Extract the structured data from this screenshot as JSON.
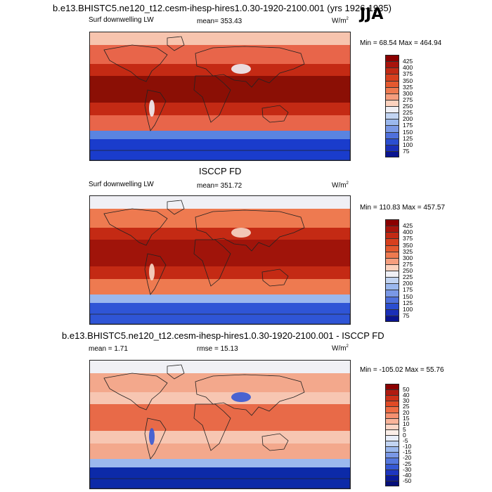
{
  "header": {
    "title": "b.e13.BHISTC5.ne120_t12.cesm-ihesp-hires1.0.30-1920-2100.001 (yrs 1926-1935)",
    "season": "JJA"
  },
  "panels": [
    {
      "id": "model",
      "title": "",
      "left_label": "Surf downwelling LW",
      "center_label": "mean= 353.43",
      "units": "W/m",
      "units_sup": "2",
      "minmax": "Min =  68.54 Max = 464.94",
      "colorbar": {
        "levels": [
          "425",
          "400",
          "375",
          "350",
          "325",
          "300",
          "275",
          "250",
          "225",
          "200",
          "175",
          "150",
          "125",
          "100",
          "75"
        ],
        "colors": [
          "#8b0000",
          "#a8140c",
          "#c22a14",
          "#d7401e",
          "#e4592f",
          "#ee7a50",
          "#f59e7e",
          "#fcd2be",
          "#f0f0f5",
          "#c2d4f2",
          "#9bb8ee",
          "#7a98e6",
          "#4f70dc",
          "#2b4ed0",
          "#1a2fb8",
          "#0a1490"
        ]
      },
      "map_colors": {
        "polar": "#1a3ccc",
        "mid_south": "#5a84e0",
        "mid": "#e8654a",
        "tropics": "#c42a14",
        "warm_pool": "#8b0f05",
        "land_cold": "#f0f0f5",
        "arctic": "#f7c4ae"
      }
    },
    {
      "id": "obs",
      "title": "ISCCP FD",
      "left_label": "Surf downwelling LW",
      "center_label": "mean= 351.72",
      "units": "W/m",
      "units_sup": "2",
      "minmax": "Min = 110.83 Max = 457.57",
      "colorbar": {
        "levels": [
          "425",
          "400",
          "375",
          "350",
          "325",
          "300",
          "275",
          "250",
          "225",
          "200",
          "175",
          "150",
          "125",
          "100",
          "75"
        ],
        "colors": [
          "#8b0000",
          "#a8140c",
          "#c22a14",
          "#d7401e",
          "#e4592f",
          "#ee7a50",
          "#f59e7e",
          "#fcd2be",
          "#f0f0f5",
          "#c2d4f2",
          "#9bb8ee",
          "#7a98e6",
          "#4f70dc",
          "#2b4ed0",
          "#1a2fb8",
          "#0a1490"
        ]
      },
      "map_colors": {
        "polar": "#2f55d6",
        "mid_south": "#9bb8ee",
        "mid": "#ee7a50",
        "tropics": "#c42a14",
        "warm_pool": "#a0140a",
        "land_cold": "#f7d8c8",
        "arctic": "#f0f0f5"
      }
    },
    {
      "id": "diff",
      "title": "b.e13.BHISTC5.ne120_t12.cesm-ihesp-hires1.0.30-1920-2100.001 - ISCCP FD",
      "left_label": "mean =   1.71",
      "center_label": "rmse =  15.13",
      "units": "W/m",
      "units_sup": "2",
      "minmax": "Min = -105.02 Max =  55.76",
      "colorbar": {
        "levels": [
          "50",
          "40",
          "30",
          "25",
          "20",
          "15",
          "10",
          "5",
          "0",
          "-5",
          "-10",
          "-15",
          "-20",
          "-25",
          "-30",
          "-40",
          "-50"
        ],
        "colors": [
          "#8b0000",
          "#b01a10",
          "#cc3018",
          "#e04a26",
          "#ee6c44",
          "#f59070",
          "#f9b49a",
          "#fcd6c6",
          "#fbeee8",
          "#e8eefa",
          "#c2d4f2",
          "#9bb8ee",
          "#7a98e6",
          "#5578de",
          "#3558d4",
          "#1e36c0",
          "#0a1a9a",
          "#06107a"
        ]
      },
      "map_colors": {
        "polar": "#0c2aa8",
        "mid_south": "#9bb8ee",
        "mid": "#f3a88c",
        "tropics": "#f7c6b2",
        "warm_pool": "#e86a48",
        "land_cold": "#3558d4",
        "arctic": "#f0f0f5"
      }
    }
  ]
}
